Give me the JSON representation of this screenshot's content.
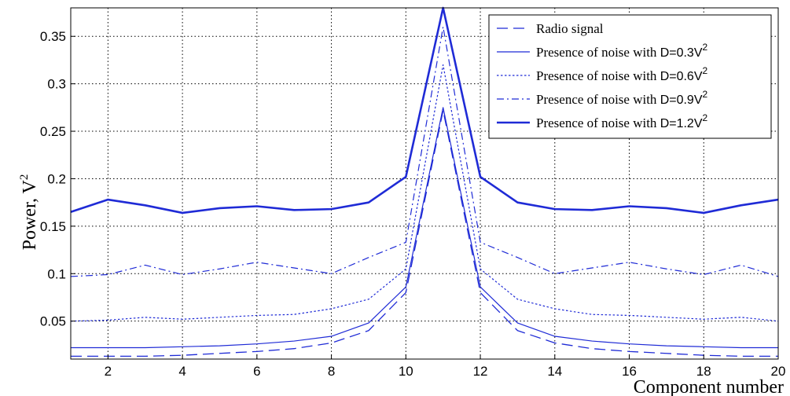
{
  "chart_data": {
    "type": "line",
    "title": "",
    "xlabel": "Component number",
    "ylabel_main": "Power,",
    "ylabel_unit": "V",
    "ylabel_sup": "2",
    "xlim": [
      1,
      20
    ],
    "ylim": [
      0.01,
      0.38
    ],
    "xticks": [
      2,
      4,
      6,
      8,
      10,
      12,
      14,
      16,
      18,
      20
    ],
    "xtick_labels": [
      "2",
      "4",
      "6",
      "8",
      "10",
      "12",
      "14",
      "16",
      "18",
      "20"
    ],
    "yticks": [
      0.05,
      0.1,
      0.15,
      0.2,
      0.25,
      0.3,
      0.35
    ],
    "ytick_labels": [
      "0.05",
      "0.1",
      "0.15",
      "0.2",
      "0.25",
      "0.3",
      "0.35"
    ],
    "grid": true,
    "legend_position": "top-right",
    "line_color": "#1f2bd6",
    "x": [
      1,
      2,
      3,
      4,
      5,
      6,
      7,
      8,
      9,
      10,
      11,
      12,
      13,
      14,
      15,
      16,
      17,
      18,
      19,
      20
    ],
    "series": [
      {
        "name": "Radio signal",
        "style": "dashed",
        "values": [
          0.013,
          0.013,
          0.013,
          0.014,
          0.016,
          0.018,
          0.021,
          0.027,
          0.04,
          0.08,
          0.272,
          0.08,
          0.04,
          0.027,
          0.021,
          0.018,
          0.016,
          0.014,
          0.013,
          0.013
        ]
      },
      {
        "name_prefix": "Presence of noise with ",
        "name_d": "D=0.3V",
        "name_sup": "2",
        "style": "solid-thin",
        "values": [
          0.022,
          0.022,
          0.022,
          0.023,
          0.024,
          0.026,
          0.029,
          0.034,
          0.048,
          0.086,
          0.275,
          0.086,
          0.048,
          0.034,
          0.029,
          0.026,
          0.024,
          0.023,
          0.022,
          0.022
        ]
      },
      {
        "name_prefix": "Presence of noise with ",
        "name_d": "D=0.6V",
        "name_sup": "2",
        "style": "dotted",
        "values": [
          0.05,
          0.051,
          0.054,
          0.052,
          0.054,
          0.056,
          0.057,
          0.063,
          0.073,
          0.105,
          0.32,
          0.105,
          0.073,
          0.063,
          0.057,
          0.056,
          0.054,
          0.052,
          0.054,
          0.05
        ]
      },
      {
        "name_prefix": "Presence of noise with ",
        "name_d": "D=0.9V",
        "name_sup": "2",
        "style": "dashdot",
        "values": [
          0.097,
          0.099,
          0.109,
          0.099,
          0.105,
          0.112,
          0.106,
          0.1,
          0.117,
          0.133,
          0.36,
          0.133,
          0.117,
          0.1,
          0.106,
          0.112,
          0.105,
          0.099,
          0.109,
          0.097
        ]
      },
      {
        "name_prefix": "Presence of noise with ",
        "name_d": "D=1.2V",
        "name_sup": "2",
        "style": "solid-thick",
        "values": [
          0.165,
          0.178,
          0.172,
          0.164,
          0.169,
          0.171,
          0.167,
          0.168,
          0.175,
          0.202,
          0.38,
          0.202,
          0.175,
          0.168,
          0.167,
          0.171,
          0.169,
          0.164,
          0.172,
          0.178
        ]
      }
    ]
  }
}
